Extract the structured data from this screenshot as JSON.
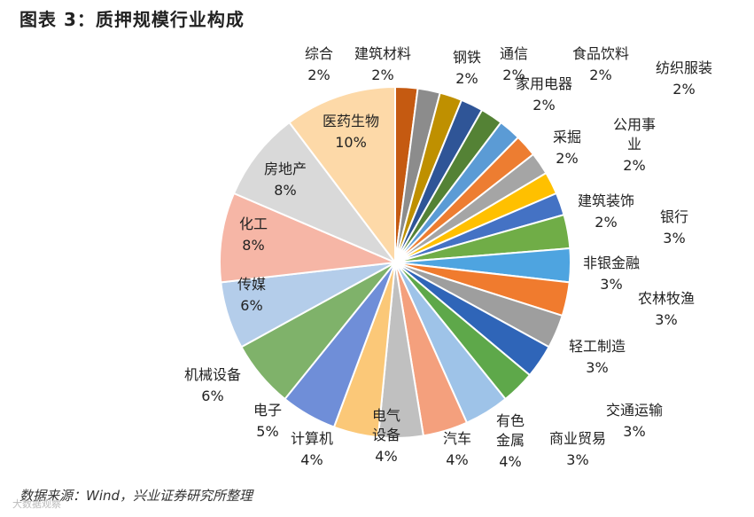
{
  "title": "图表 3：质押规模行业构成",
  "source": "数据来源：Wind，兴业证券研究所整理",
  "watermark": "大数据观察",
  "chart_data": {
    "type": "pie",
    "title": "图表 3：质押规模行业构成",
    "unit": "%",
    "start": "12 o'clock",
    "direction": "clockwise",
    "legend": "none",
    "slices": [
      {
        "label": "综合",
        "value": 2,
        "display": "2%",
        "color": "#c55a11"
      },
      {
        "label": "建筑材料",
        "value": 2,
        "display": "2%",
        "color": "#7f7f7f"
      },
      {
        "label": "钢铁",
        "value": 2,
        "display": "2%",
        "color": "#bf9000"
      },
      {
        "label": "通信",
        "value": 2,
        "display": "2%",
        "color": "#2f5597"
      },
      {
        "label": "食品饮料",
        "value": 2,
        "display": "2%",
        "color": "#548235"
      },
      {
        "label": "纺织服装",
        "value": 2,
        "display": "2%",
        "color": "#5b9bd5"
      },
      {
        "label": "家用电器",
        "value": 2,
        "display": "2%",
        "color": "#ed7d31"
      },
      {
        "label": "采掘",
        "value": 2,
        "display": "2%",
        "color": "#a5a5a5"
      },
      {
        "label": "公用事业",
        "value": 2,
        "display": "2%",
        "color": "#ffc000"
      },
      {
        "label": "建筑装饰",
        "value": 2,
        "display": "2%",
        "color": "#4472c4"
      },
      {
        "label": "银行",
        "value": 3,
        "display": "3%",
        "color": "#70ad47"
      },
      {
        "label": "非银金融",
        "value": 3,
        "display": "3%",
        "color": "#4ea4e0"
      },
      {
        "label": "农林牧渔",
        "value": 3,
        "display": "3%",
        "color": "#f07b2e"
      },
      {
        "label": "轻工制造",
        "value": 3,
        "display": "3%",
        "color": "#9e9e9e"
      },
      {
        "label": "交通运输",
        "value": 3,
        "display": "3%",
        "color": "#ffc000"
      },
      {
        "label": "商业贸易",
        "value": 3,
        "display": "3%",
        "color": "#3a64b8"
      },
      {
        "label": "有色金属",
        "value": 4,
        "display": "4%",
        "color": "#5e9e3a"
      },
      {
        "label": "汽车",
        "value": 4,
        "display": "4%",
        "color": "#9dc3e6"
      },
      {
        "label": "电气设备",
        "value": 4,
        "display": "4%",
        "color": "#f4a582"
      },
      {
        "label": "计算机",
        "value": 4,
        "display": "4%",
        "color": "#c9c9c9"
      },
      {
        "label": "电子",
        "value": 5,
        "display": "5%",
        "color": "#ffd47f"
      },
      {
        "label": "机械设备",
        "value": 6,
        "display": "6%",
        "color": "#7f9fe0"
      },
      {
        "label": "传媒",
        "value": 6,
        "display": "6%",
        "color": "#a9d18e"
      },
      {
        "label": "化工",
        "value": 8,
        "display": "8%",
        "color": "#b4d0ee"
      },
      {
        "label": "房地产",
        "value": 8,
        "display": "8%",
        "color": "#f8b8a0"
      },
      {
        "label": "医药生物",
        "value": 10,
        "display": "10%",
        "color": "#d6d6d6"
      }
    ],
    "order_note": "clockwise from top"
  }
}
